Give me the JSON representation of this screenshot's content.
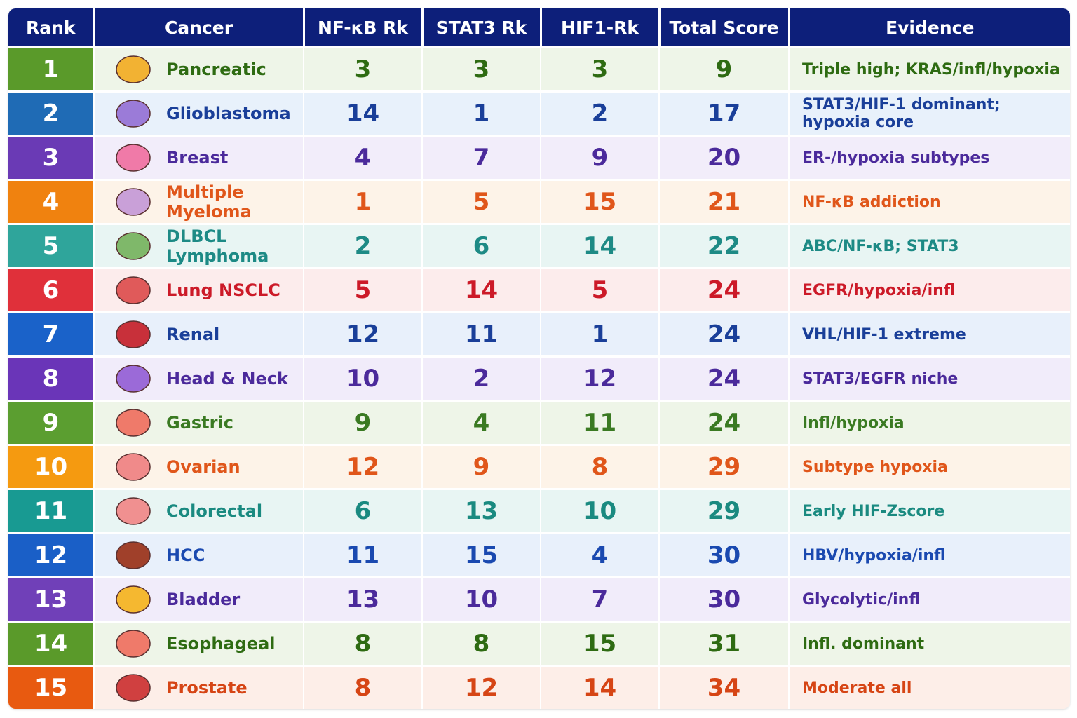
{
  "table": {
    "header": [
      "Rank",
      "Cancer",
      "NF-κB Rk",
      "STAT3 Rk",
      "HIF1-Rk",
      "Total Score",
      "Evidence"
    ],
    "rows": [
      [
        "1",
        "Pancreatic",
        "3",
        "3",
        "3",
        "9",
        "Triple high; KRAS/infl/hypoxia"
      ],
      [
        "2",
        "Glioblastoma",
        "14",
        "1",
        "2",
        "17",
        "STAT3/HIF-1 dominant; hypoxia core"
      ],
      [
        "3",
        "Breast",
        "4",
        "7",
        "9",
        "20",
        "ER-/hypoxia subtypes"
      ],
      [
        "4",
        "Multiple Myeloma",
        "1",
        "5",
        "15",
        "21",
        "NF-κB addiction"
      ],
      [
        "5",
        "DLBCL Lymphoma",
        "2",
        "6",
        "14",
        "22",
        "ABC/NF-κB; STAT3"
      ],
      [
        "6",
        "Lung NSCLC",
        "5",
        "14",
        "5",
        "24",
        "EGFR/hypoxia/infl"
      ],
      [
        "7",
        "Renal",
        "12",
        "11",
        "1",
        "24",
        "VHL/HIF-1 extreme"
      ],
      [
        "8",
        "Head & Neck",
        "10",
        "2",
        "12",
        "24",
        "STAT3/EGFR niche"
      ],
      [
        "9",
        "Gastric",
        "9",
        "4",
        "11",
        "24",
        "Infl/hypoxia"
      ],
      [
        "10",
        "Ovarian",
        "12",
        "9",
        "8",
        "29",
        "Subtype hypoxia"
      ],
      [
        "11",
        "Colorectal",
        "6",
        "13",
        "10",
        "29",
        "Early HIF-Zscore"
      ],
      [
        "12",
        "HCC",
        "11",
        "15",
        "4",
        "30",
        "HBV/hypoxia/infl"
      ],
      [
        "13",
        "Bladder",
        "13",
        "10",
        "7",
        "30",
        "Glycolytic/infl"
      ],
      [
        "14",
        "Esophageal",
        "8",
        "8",
        "15",
        "31",
        "Infl. dominant"
      ],
      [
        "15",
        "Prostate",
        "8",
        "12",
        "14",
        "34",
        "Moderate all"
      ]
    ]
  }
}
